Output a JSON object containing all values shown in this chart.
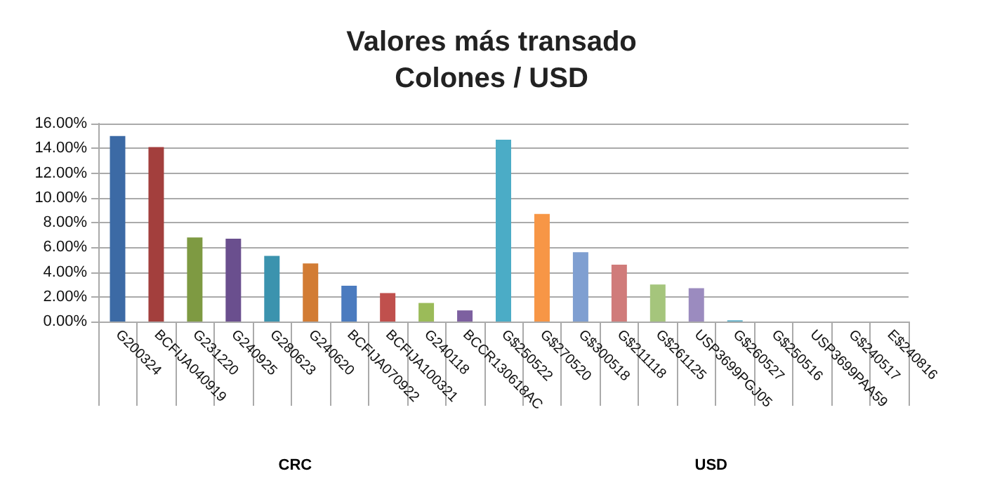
{
  "chart_data": {
    "type": "bar",
    "title": "Valores más transado\nColones / USD",
    "categories": [
      "G200324",
      "BCFIJA040919",
      "G231220",
      "G240925",
      "G280623",
      "G240620",
      "BCFIJA070922",
      "BCFIJA100321",
      "G240118",
      "BCCR130618AC",
      "G$250522",
      "G$270520",
      "G$300518",
      "G$211118",
      "G$261125",
      "USP3699PGJ05",
      "G$260527",
      "G$250516",
      "USP3699PAA59",
      "G$240517",
      "E$240816"
    ],
    "values": [
      15.0,
      14.1,
      6.8,
      6.7,
      5.3,
      4.7,
      2.9,
      2.3,
      1.5,
      0.9,
      14.7,
      8.7,
      5.6,
      4.6,
      3.0,
      2.7,
      0.1,
      0,
      0,
      0,
      0
    ],
    "colors": [
      "#3c6aa5",
      "#a33f3d",
      "#7e9a42",
      "#6a4f8e",
      "#3b93ae",
      "#d27c34",
      "#4b7bbf",
      "#c0504d",
      "#9bbb59",
      "#7d60a0",
      "#4bacc6",
      "#f79646",
      "#7f9fd1",
      "#d07b7a",
      "#a5c57c",
      "#9b8bbf",
      "#5fb1c9",
      "#f5a866",
      "#95a9d3",
      "#d89392",
      "#b3cc8b"
    ],
    "ylim": [
      0,
      16
    ],
    "yticks": [
      {
        "value": 0,
        "label": "0.00%"
      },
      {
        "value": 2,
        "label": "2.00%"
      },
      {
        "value": 4,
        "label": "4.00%"
      },
      {
        "value": 6,
        "label": "6.00%"
      },
      {
        "value": 8,
        "label": "8.00%"
      },
      {
        "value": 10,
        "label": "10.00%"
      },
      {
        "value": 12,
        "label": "12.00%"
      },
      {
        "value": 14,
        "label": "14.00%"
      },
      {
        "value": 16,
        "label": "16.00%"
      }
    ],
    "grid": "y",
    "annotations": [
      "CRC",
      "USD"
    ]
  }
}
